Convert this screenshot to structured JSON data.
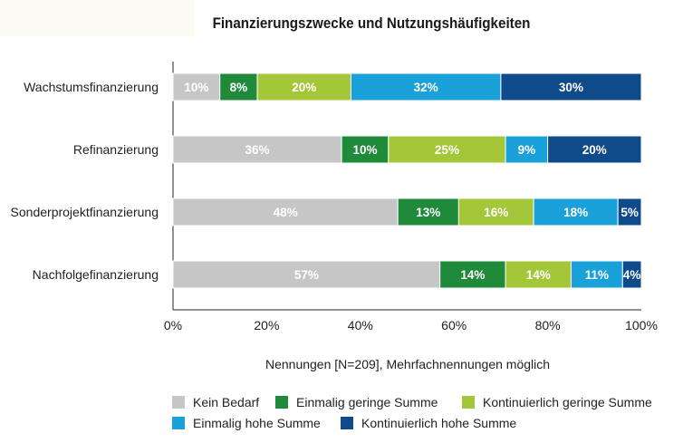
{
  "chart_data": {
    "type": "bar",
    "orientation": "horizontal",
    "stacked": true,
    "title": "Finanzierungszwecke und Nutzungshäufigkeiten",
    "xlabel": "Nennungen [N=209], Mehrfachnennungen möglich",
    "ylabel": "",
    "xlim": [
      0,
      100
    ],
    "xticks": [
      "0%",
      "20%",
      "40%",
      "60%",
      "80%",
      "100%"
    ],
    "grid": false,
    "legend_position": "bottom",
    "categories": [
      "Wachstumsfinanzierung",
      "Refinanzierung",
      "Sonderprojektfinanzierung",
      "Nachfolgefinanzierung"
    ],
    "series": [
      {
        "name": "Kein Bedarf",
        "color": "#c6c6c6",
        "values": [
          10,
          36,
          48,
          57
        ],
        "labels": [
          "10%",
          "36%",
          "48%",
          "57%"
        ]
      },
      {
        "name": "Einmalig geringe Summe",
        "color": "#1e8a3a",
        "values": [
          8,
          10,
          13,
          14
        ],
        "labels": [
          "8%",
          "10%",
          "13%",
          "14%"
        ]
      },
      {
        "name": "Kontinuierlich geringe Summe",
        "color": "#a4c639",
        "values": [
          20,
          25,
          16,
          14
        ],
        "labels": [
          "20%",
          "25%",
          "16%",
          "14%"
        ]
      },
      {
        "name": "Einmalig hohe Summe",
        "color": "#1ba1d9",
        "values": [
          32,
          9,
          18,
          11
        ],
        "labels": [
          "32%",
          "9%",
          "18%",
          "11%"
        ]
      },
      {
        "name": "Kontinuierlich hohe Summe",
        "color": "#0f4a8a",
        "values": [
          30,
          20,
          5,
          4
        ],
        "labels": [
          "30%",
          "20%",
          "5%",
          "4%"
        ]
      }
    ]
  }
}
